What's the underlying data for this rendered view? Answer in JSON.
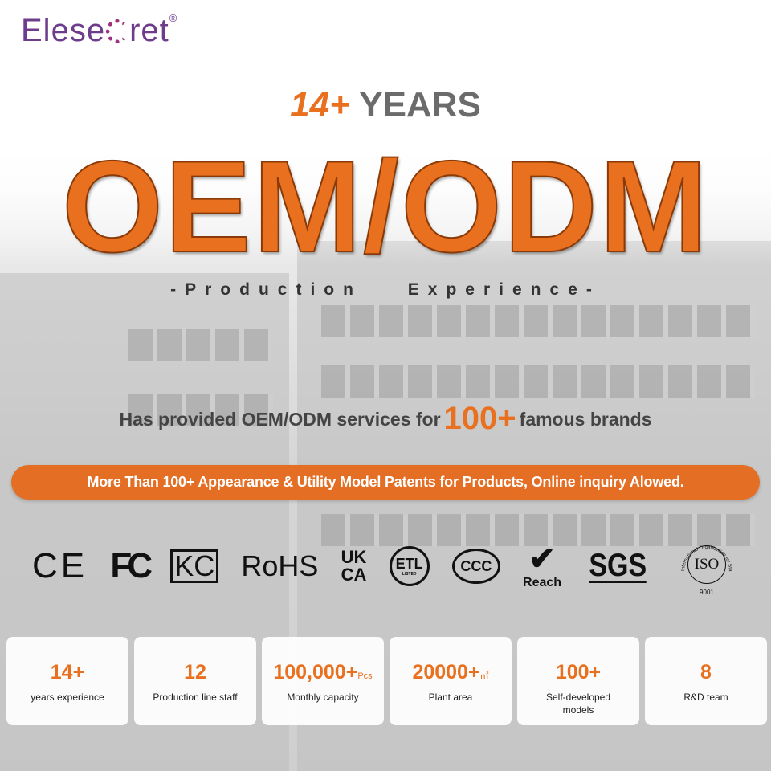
{
  "logo": {
    "text": "Elesecret",
    "left": "Elese",
    "right": "ret",
    "mark": "®"
  },
  "headline": {
    "number": "14+",
    "word": "YEARS"
  },
  "title": "OEM/ODM",
  "subtitle": "-Production Experience-",
  "brands": {
    "before": "Has provided OEM/ODM services for",
    "number": "100+",
    "after": "famous brands"
  },
  "banner": "More Than 100+ Appearance & Utility Model Patents for Products, Online inquiry Alowed.",
  "certifications": {
    "ce": "CE",
    "fc": "FC",
    "kc": "KC",
    "rohs": "RoHS",
    "ukca_top": "UK",
    "ukca_bottom": "CA",
    "etl": "ETL",
    "etl_sub": "LISTED",
    "ccc": "CCC",
    "reach": "Reach",
    "sgs": "SGS",
    "iso": "ISO",
    "iso_ring": "International Organization for Standardization",
    "iso_num": "9001"
  },
  "stats": [
    {
      "value": "14+",
      "unit": "",
      "label": "years experience"
    },
    {
      "value": "12",
      "unit": "",
      "label": "Production line staff"
    },
    {
      "value": "100,000+",
      "unit": "Pcs",
      "label": "Monthly capacity"
    },
    {
      "value": "20000+",
      "unit": "㎡",
      "label": "Plant area"
    },
    {
      "value": "100+",
      "unit": "",
      "label": "Self-developed models"
    },
    {
      "value": "8",
      "unit": "",
      "label": "R&D team"
    }
  ],
  "colors": {
    "accent": "#e8701e",
    "banner": "#e36e24",
    "logo": "#6d3d8c"
  }
}
